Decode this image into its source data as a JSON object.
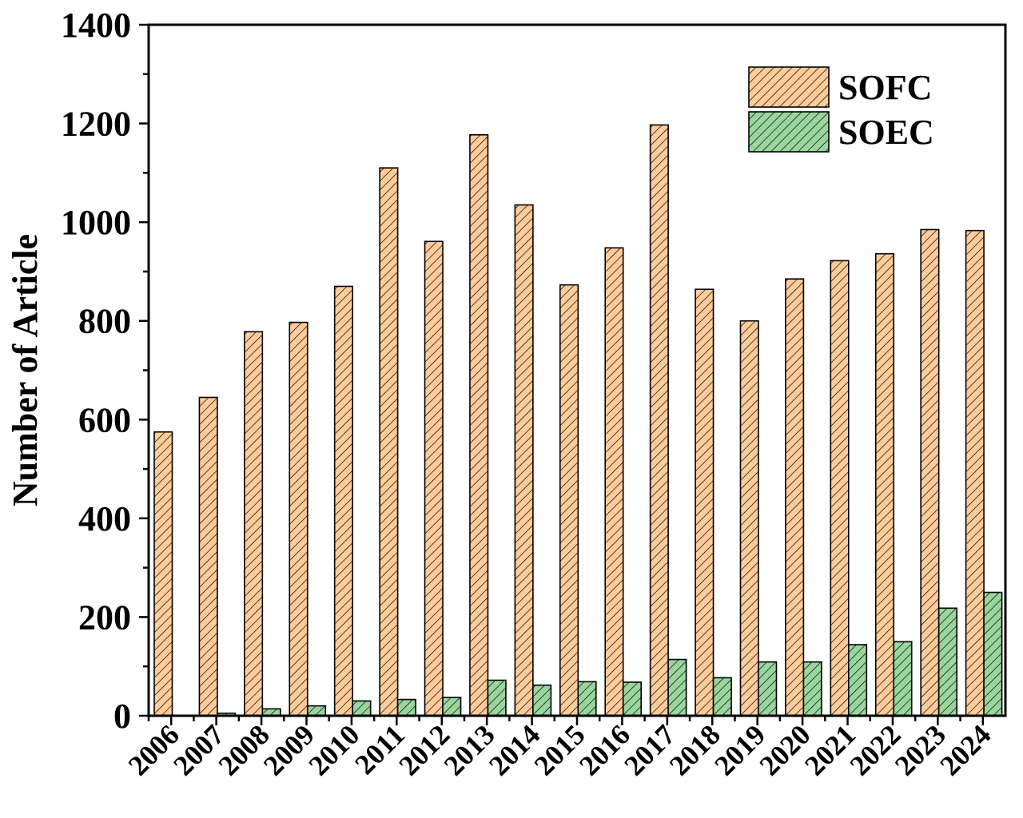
{
  "chart_data": {
    "type": "bar",
    "title": "",
    "xlabel": "",
    "ylabel": "Number of Article",
    "ylim": [
      0,
      1400
    ],
    "yticks": [
      0,
      200,
      400,
      600,
      800,
      1000,
      1200,
      1400
    ],
    "grid": false,
    "legend_position": "top-right",
    "categories": [
      "2006",
      "2007",
      "2008",
      "2009",
      "2010",
      "2011",
      "2012",
      "2013",
      "2014",
      "2015",
      "2016",
      "2017",
      "2018",
      "2019",
      "2020",
      "2021",
      "2022",
      "2023",
      "2024"
    ],
    "series": [
      {
        "name": "SOFC",
        "color": "#FFCC99",
        "hatch": "diagonal",
        "values": [
          575,
          645,
          778,
          797,
          870,
          1110,
          961,
          1177,
          1035,
          873,
          948,
          1197,
          864,
          800,
          885,
          922,
          936,
          985,
          983
        ]
      },
      {
        "name": "SOEC",
        "color": "#99D69E",
        "hatch": "diagonal",
        "values": [
          0,
          5,
          14,
          20,
          30,
          33,
          37,
          72,
          62,
          69,
          68,
          114,
          77,
          109,
          109,
          144,
          150,
          218,
          250
        ]
      }
    ]
  }
}
